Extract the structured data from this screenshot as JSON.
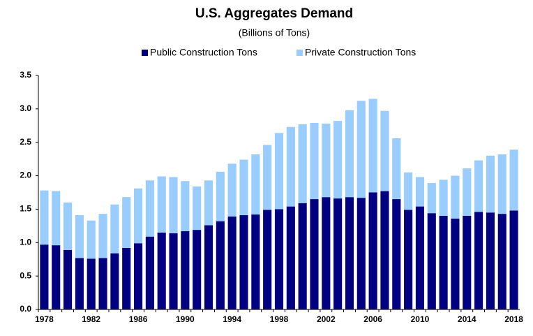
{
  "chart_data": {
    "type": "stacked-bar",
    "title": "U.S. Aggregates Demand",
    "subtitle": "(Billions of Tons)",
    "categories": [
      "1978",
      null,
      null,
      null,
      "1982",
      null,
      null,
      null,
      "1986",
      null,
      null,
      null,
      "1990",
      null,
      null,
      null,
      "1994",
      null,
      null,
      null,
      "1998",
      null,
      null,
      null,
      "2002",
      null,
      null,
      null,
      "2006",
      null,
      null,
      null,
      "2010",
      null,
      null,
      null,
      "2014",
      null,
      null,
      null,
      "2018"
    ],
    "series": [
      {
        "name": "Public Construction Tons",
        "color": "#000080",
        "values": [
          0.97,
          0.96,
          0.89,
          0.77,
          0.76,
          0.77,
          0.84,
          0.92,
          0.99,
          1.09,
          1.15,
          1.14,
          1.17,
          1.19,
          1.26,
          1.32,
          1.39,
          1.41,
          1.42,
          1.49,
          1.5,
          1.54,
          1.59,
          1.65,
          1.68,
          1.66,
          1.68,
          1.67,
          1.75,
          1.77,
          1.65,
          1.49,
          1.54,
          1.44,
          1.4,
          1.36,
          1.4,
          1.46,
          1.45,
          1.43,
          1.48
        ]
      },
      {
        "name": "Private Construction Tons",
        "color": "#99ccff",
        "values": [
          0.81,
          0.81,
          0.71,
          0.64,
          0.57,
          0.66,
          0.73,
          0.76,
          0.82,
          0.84,
          0.84,
          0.84,
          0.75,
          0.65,
          0.67,
          0.74,
          0.79,
          0.83,
          0.9,
          0.97,
          1.14,
          1.19,
          1.18,
          1.14,
          1.1,
          1.16,
          1.3,
          1.45,
          1.4,
          1.2,
          0.91,
          0.56,
          0.44,
          0.45,
          0.54,
          0.64,
          0.71,
          0.77,
          0.85,
          0.89,
          0.91
        ]
      }
    ],
    "ylim": [
      0,
      3.5
    ],
    "yticks": [
      {
        "value": 0,
        "label": "0.0"
      },
      0.5,
      {
        "value": 1,
        "label": "1.0"
      },
      1.5,
      {
        "value": 2,
        "label": "2.0"
      },
      2.5,
      {
        "value": 3,
        "label": "3.0"
      },
      3.5
    ],
    "legend": "top"
  }
}
